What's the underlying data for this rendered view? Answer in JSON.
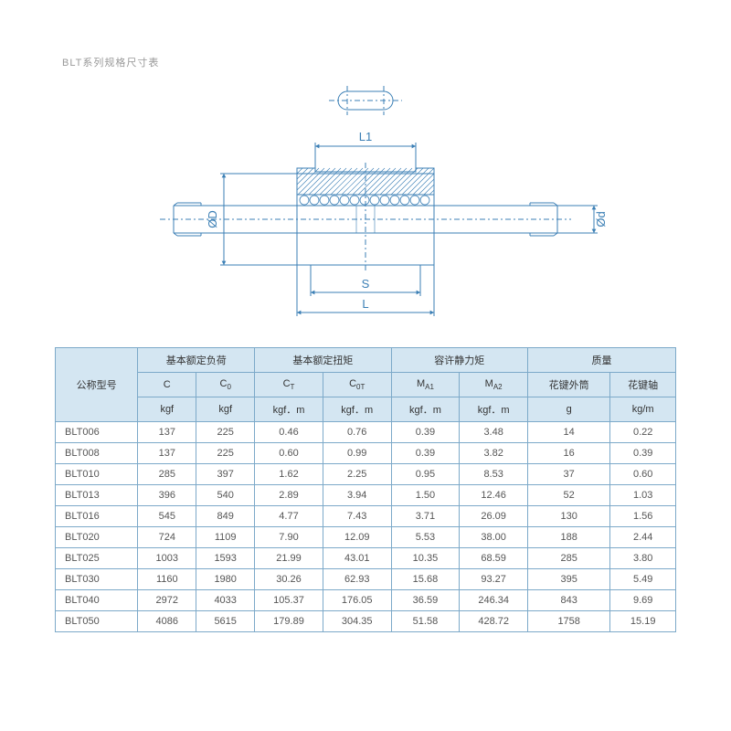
{
  "title": "BLT系列规格尺寸表",
  "diagram": {
    "stroke_color": "#3b7fb5",
    "stroke_width": 1,
    "centerline_dash": "6 3 2 3",
    "labels": {
      "L1": "L1",
      "S": "S",
      "L": "L",
      "OD": "ØD",
      "Od": "Ød"
    }
  },
  "table": {
    "header_bg": "#d4e6f2",
    "border_color": "#7ca9c9",
    "text_color": "#555555",
    "group_headers": [
      "基本额定负荷",
      "基本额定扭矩",
      "容许静力矩",
      "质量"
    ],
    "model_header": "公称型号",
    "sub_headers": [
      {
        "main": "C",
        "sub": ""
      },
      {
        "main": "C",
        "sub": "0"
      },
      {
        "main": "C",
        "sub": "T"
      },
      {
        "main": "C",
        "sub": "0T"
      },
      {
        "main": "M",
        "sub": "A1"
      },
      {
        "main": "M",
        "sub": "A2"
      },
      {
        "main": "花键外筒",
        "sub": ""
      },
      {
        "main": "花键轴",
        "sub": ""
      }
    ],
    "unit_headers": [
      "kgf",
      "kgf",
      "kgf．m",
      "kgf．m",
      "kgf．m",
      "kgf．m",
      "g",
      "kg/m"
    ],
    "rows": [
      {
        "model": "BLT006",
        "v": [
          "137",
          "225",
          "0.46",
          "0.76",
          "0.39",
          "3.48",
          "14",
          "0.22"
        ]
      },
      {
        "model": "BLT008",
        "v": [
          "137",
          "225",
          "0.60",
          "0.99",
          "0.39",
          "3.82",
          "16",
          "0.39"
        ]
      },
      {
        "model": "BLT010",
        "v": [
          "285",
          "397",
          "1.62",
          "2.25",
          "0.95",
          "8.53",
          "37",
          "0.60"
        ]
      },
      {
        "model": "BLT013",
        "v": [
          "396",
          "540",
          "2.89",
          "3.94",
          "1.50",
          "12.46",
          "52",
          "1.03"
        ]
      },
      {
        "model": "BLT016",
        "v": [
          "545",
          "849",
          "4.77",
          "7.43",
          "3.71",
          "26.09",
          "130",
          "1.56"
        ]
      },
      {
        "model": "BLT020",
        "v": [
          "724",
          "1109",
          "7.90",
          "12.09",
          "5.53",
          "38.00",
          "188",
          "2.44"
        ]
      },
      {
        "model": "BLT025",
        "v": [
          "1003",
          "1593",
          "21.99",
          "43.01",
          "10.35",
          "68.59",
          "285",
          "3.80"
        ]
      },
      {
        "model": "BLT030",
        "v": [
          "1160",
          "1980",
          "30.26",
          "62.93",
          "15.68",
          "93.27",
          "395",
          "5.49"
        ]
      },
      {
        "model": "BLT040",
        "v": [
          "2972",
          "4033",
          "105.37",
          "176.05",
          "36.59",
          "246.34",
          "843",
          "9.69"
        ]
      },
      {
        "model": "BLT050",
        "v": [
          "4086",
          "5615",
          "179.89",
          "304.35",
          "51.58",
          "428.72",
          "1758",
          "15.19"
        ]
      }
    ]
  }
}
